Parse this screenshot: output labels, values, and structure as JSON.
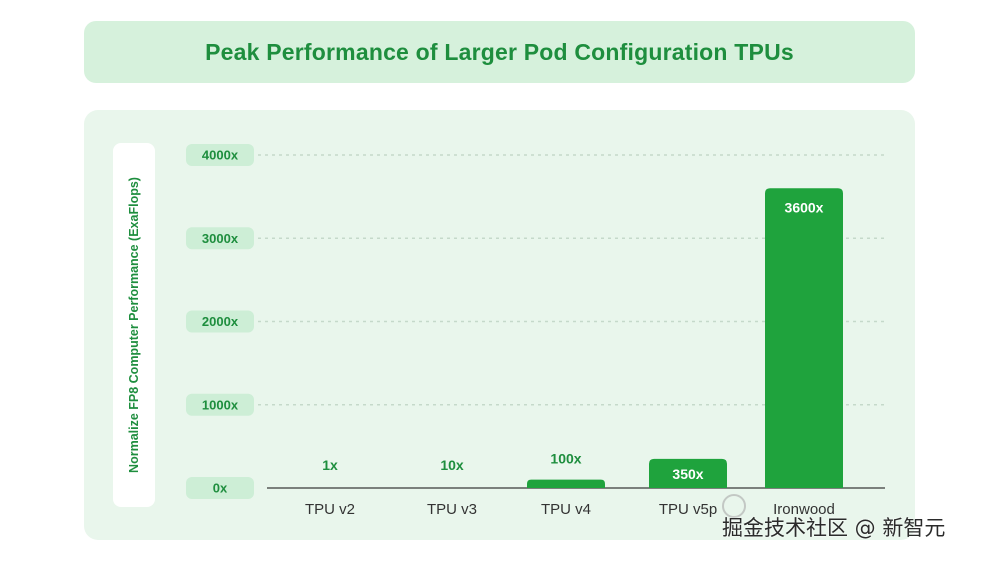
{
  "header": {
    "title": "Peak Performance of Larger Pod Configuration TPUs"
  },
  "watermark": {
    "text": "掘金技术社区 @ 新智元"
  },
  "colors": {
    "accent": "#1e8e3e",
    "bar": "#1fa33d",
    "panel": "#e9f6ec",
    "title_bg": "#d6f1dc"
  },
  "chart_data": {
    "type": "bar",
    "title": "Peak Performance of Larger Pod Configuration TPUs",
    "xlabel": "",
    "ylabel": "Normalize FP8 Computer Performance (ExaFlops)",
    "categories": [
      "TPU v2",
      "TPU v3",
      "TPU v4",
      "TPU v5p",
      "Ironwood"
    ],
    "values": [
      1,
      10,
      100,
      350,
      3600
    ],
    "value_labels": [
      "1x",
      "10x",
      "100x",
      "350x",
      "3600x"
    ],
    "yticks": [
      0,
      1000,
      2000,
      3000,
      4000
    ],
    "ytick_labels": [
      "0x",
      "1000x",
      "2000x",
      "3000x",
      "4000x"
    ],
    "ylim": [
      0,
      4000
    ],
    "grid": true,
    "legend": "none"
  }
}
